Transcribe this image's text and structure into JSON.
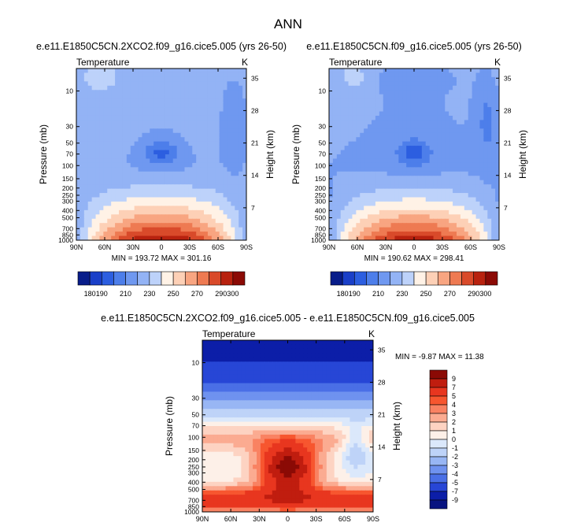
{
  "figure": {
    "title": "ANN"
  },
  "chart_data": [
    {
      "type": "heatmap",
      "title": "e.e11.E1850C5CN.2XCO2.f09_g16.cice5.005 (yrs 26-50)",
      "left_label": "Temperature",
      "right_label": "K",
      "xlabel": "",
      "ylabel": "Pressure (mb)",
      "ylabel_right": "Height (km)",
      "x_ticks": [
        "90N",
        "60N",
        "30N",
        "0",
        "30S",
        "60S",
        "90S"
      ],
      "y_ticks": [
        "10",
        "30",
        "50",
        "70",
        "100",
        "150",
        "200",
        "250",
        "300",
        "400",
        "500",
        "700",
        "850",
        "1000"
      ],
      "y_right_ticks": [
        "35",
        "28",
        "21",
        "14",
        "7"
      ],
      "stats": {
        "min_label": "MIN",
        "min": "193.72",
        "max_label": "MAX",
        "max": "301.16"
      },
      "colorbar": {
        "orientation": "horizontal",
        "levels": [
          180,
          190,
          200,
          210,
          220,
          230,
          240,
          250,
          260,
          270,
          280,
          290,
          300
        ],
        "labels": [
          "180",
          "190",
          "210",
          "230",
          "250",
          "270",
          "290",
          "300"
        ]
      }
    },
    {
      "type": "heatmap",
      "title": "e.e11.E1850C5CN.f09_g16.cice5.005 (yrs 26-50)",
      "left_label": "Temperature",
      "right_label": "K",
      "xlabel": "",
      "ylabel": "Pressure (mb)",
      "ylabel_right": "Height (km)",
      "x_ticks": [
        "90N",
        "60N",
        "30N",
        "0",
        "30S",
        "60S",
        "90S"
      ],
      "y_ticks": [
        "10",
        "30",
        "50",
        "70",
        "100",
        "150",
        "200",
        "250",
        "300",
        "400",
        "500",
        "700",
        "850",
        "1000"
      ],
      "y_right_ticks": [
        "35",
        "28",
        "21",
        "14",
        "7"
      ],
      "stats": {
        "min_label": "MIN",
        "min": "190.62",
        "max_label": "MAX",
        "max": "298.41"
      },
      "colorbar": {
        "orientation": "horizontal",
        "levels": [
          180,
          190,
          200,
          210,
          220,
          230,
          240,
          250,
          260,
          270,
          280,
          290,
          300
        ],
        "labels": [
          "180",
          "190",
          "210",
          "230",
          "250",
          "270",
          "290",
          "300"
        ]
      }
    },
    {
      "type": "heatmap",
      "title": "e.e11.E1850C5CN.2XCO2.f09_g16.cice5.005 - e.e11.E1850C5CN.f09_g16.cice5.005",
      "left_label": "Temperature",
      "right_label": "K",
      "xlabel": "",
      "ylabel": "Pressure (mb)",
      "ylabel_right": "Height (km)",
      "x_ticks": [
        "90N",
        "60N",
        "30N",
        "0",
        "30S",
        "60S",
        "90S"
      ],
      "y_ticks": [
        "10",
        "30",
        "50",
        "70",
        "100",
        "150",
        "200",
        "250",
        "300",
        "400",
        "500",
        "700",
        "850",
        "1000"
      ],
      "y_right_ticks": [
        "35",
        "28",
        "21",
        "14",
        "7"
      ],
      "stats": {
        "min_label": "MIN =",
        "min": "-9.87",
        "max_label": "MAX =",
        "max": "11.38"
      },
      "colorbar": {
        "orientation": "vertical",
        "levels": [
          9,
          7,
          5,
          4,
          3,
          2,
          1,
          0,
          -1,
          -2,
          -3,
          -4,
          -5,
          -7,
          -9
        ],
        "labels": [
          "9",
          "7",
          "5",
          "4",
          "3",
          "2",
          "1",
          "0",
          "-1",
          "-2",
          "-3",
          "-4",
          "-5",
          "-7",
          "-9"
        ]
      }
    }
  ],
  "colors": {
    "abs_palette": [
      "#081d8a",
      "#1a3fc8",
      "#2c5ee0",
      "#4d7eea",
      "#6f98f0",
      "#93b3f5",
      "#bdd2fa",
      "#fff2e6",
      "#fdd0b6",
      "#f8a581",
      "#ee7a52",
      "#d94a2a",
      "#b8220f",
      "#8b0a05"
    ],
    "diff_palette": [
      "#8b0a05",
      "#c01d0f",
      "#e8361f",
      "#f7562f",
      "#f98262",
      "#fbab91",
      "#fdd3c2",
      "#fdf0e8",
      "#dbe8fb",
      "#bed3f8",
      "#98b6f4",
      "#6f92ef",
      "#4a6fe6",
      "#2746d6",
      "#0c1ea8",
      "#081480"
    ]
  }
}
